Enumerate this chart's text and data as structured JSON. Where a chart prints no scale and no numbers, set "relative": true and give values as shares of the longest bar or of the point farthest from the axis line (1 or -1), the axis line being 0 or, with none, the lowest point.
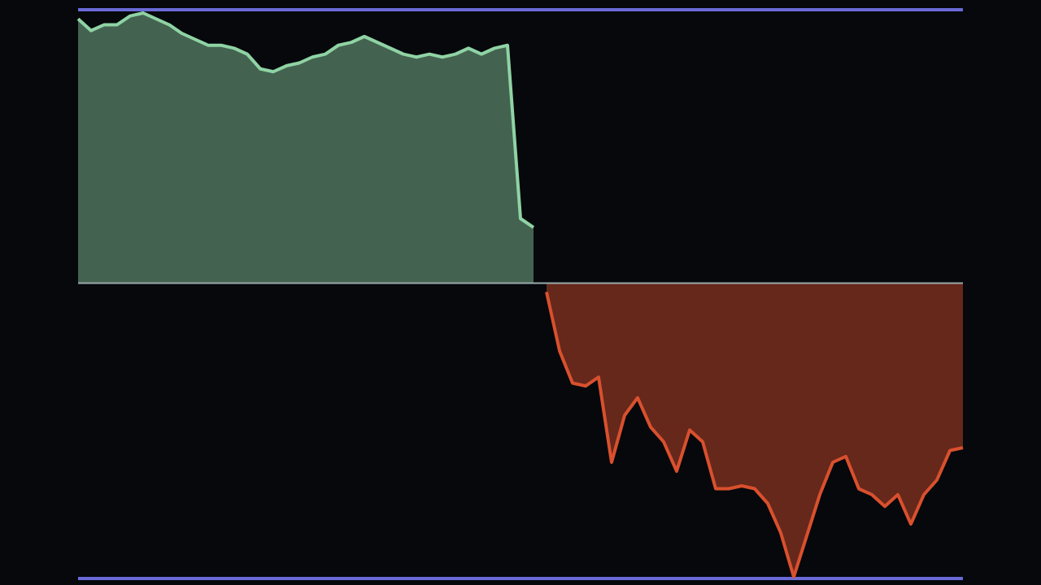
{
  "chart_data": {
    "type": "area",
    "relative": true,
    "categories": [
      null,
      null,
      null,
      null,
      null,
      null,
      null,
      null,
      null,
      null,
      null,
      null,
      null,
      null,
      null,
      null,
      null,
      null,
      null,
      null,
      null,
      null,
      null,
      null,
      null,
      null,
      null,
      null,
      null,
      null,
      null,
      null,
      null,
      null,
      null,
      null,
      null,
      null,
      null,
      null,
      null,
      null,
      null,
      null,
      null,
      null,
      null,
      null,
      null,
      null,
      null,
      null,
      null,
      null,
      null,
      null,
      null,
      null,
      null,
      null,
      null,
      null,
      null,
      null,
      null,
      null,
      null,
      null,
      null
    ],
    "series": [
      {
        "color": "#8fd3a4",
        "values": [
          0.9,
          0.86,
          0.88,
          0.88,
          0.91,
          0.92,
          0.9,
          0.88,
          0.85,
          0.83,
          0.81,
          0.81,
          0.8,
          0.78,
          0.73,
          0.72,
          0.74,
          0.75,
          0.77,
          0.78,
          0.81,
          0.82,
          0.84,
          0.82,
          0.8,
          0.78,
          0.77,
          0.78,
          0.77,
          0.78,
          0.8,
          0.78,
          0.8,
          0.81,
          0.22,
          0.19,
          null,
          null,
          null,
          null,
          null,
          null,
          null,
          null,
          null,
          null,
          null,
          null,
          null,
          null,
          null,
          null,
          null,
          null,
          null,
          null,
          null,
          null,
          null,
          null,
          null,
          null,
          null,
          null,
          null,
          null,
          null,
          null,
          null
        ]
      },
      {
        "color": "#d9502e",
        "values": [
          null,
          null,
          null,
          null,
          null,
          null,
          null,
          null,
          null,
          null,
          null,
          null,
          null,
          null,
          null,
          null,
          null,
          null,
          null,
          null,
          null,
          null,
          null,
          null,
          null,
          null,
          null,
          null,
          null,
          null,
          null,
          null,
          null,
          null,
          null,
          null,
          -0.03,
          -0.23,
          -0.34,
          -0.35,
          -0.32,
          -0.61,
          -0.45,
          -0.39,
          -0.49,
          -0.54,
          -0.64,
          -0.5,
          -0.54,
          -0.7,
          -0.7,
          -0.69,
          -0.7,
          -0.75,
          -0.85,
          -1.0,
          -0.86,
          -0.72,
          -0.61,
          -0.59,
          -0.7,
          -0.72,
          -0.76,
          -0.72,
          -0.82,
          -0.72,
          -0.67,
          -0.57,
          -0.56
        ]
      }
    ]
  }
}
